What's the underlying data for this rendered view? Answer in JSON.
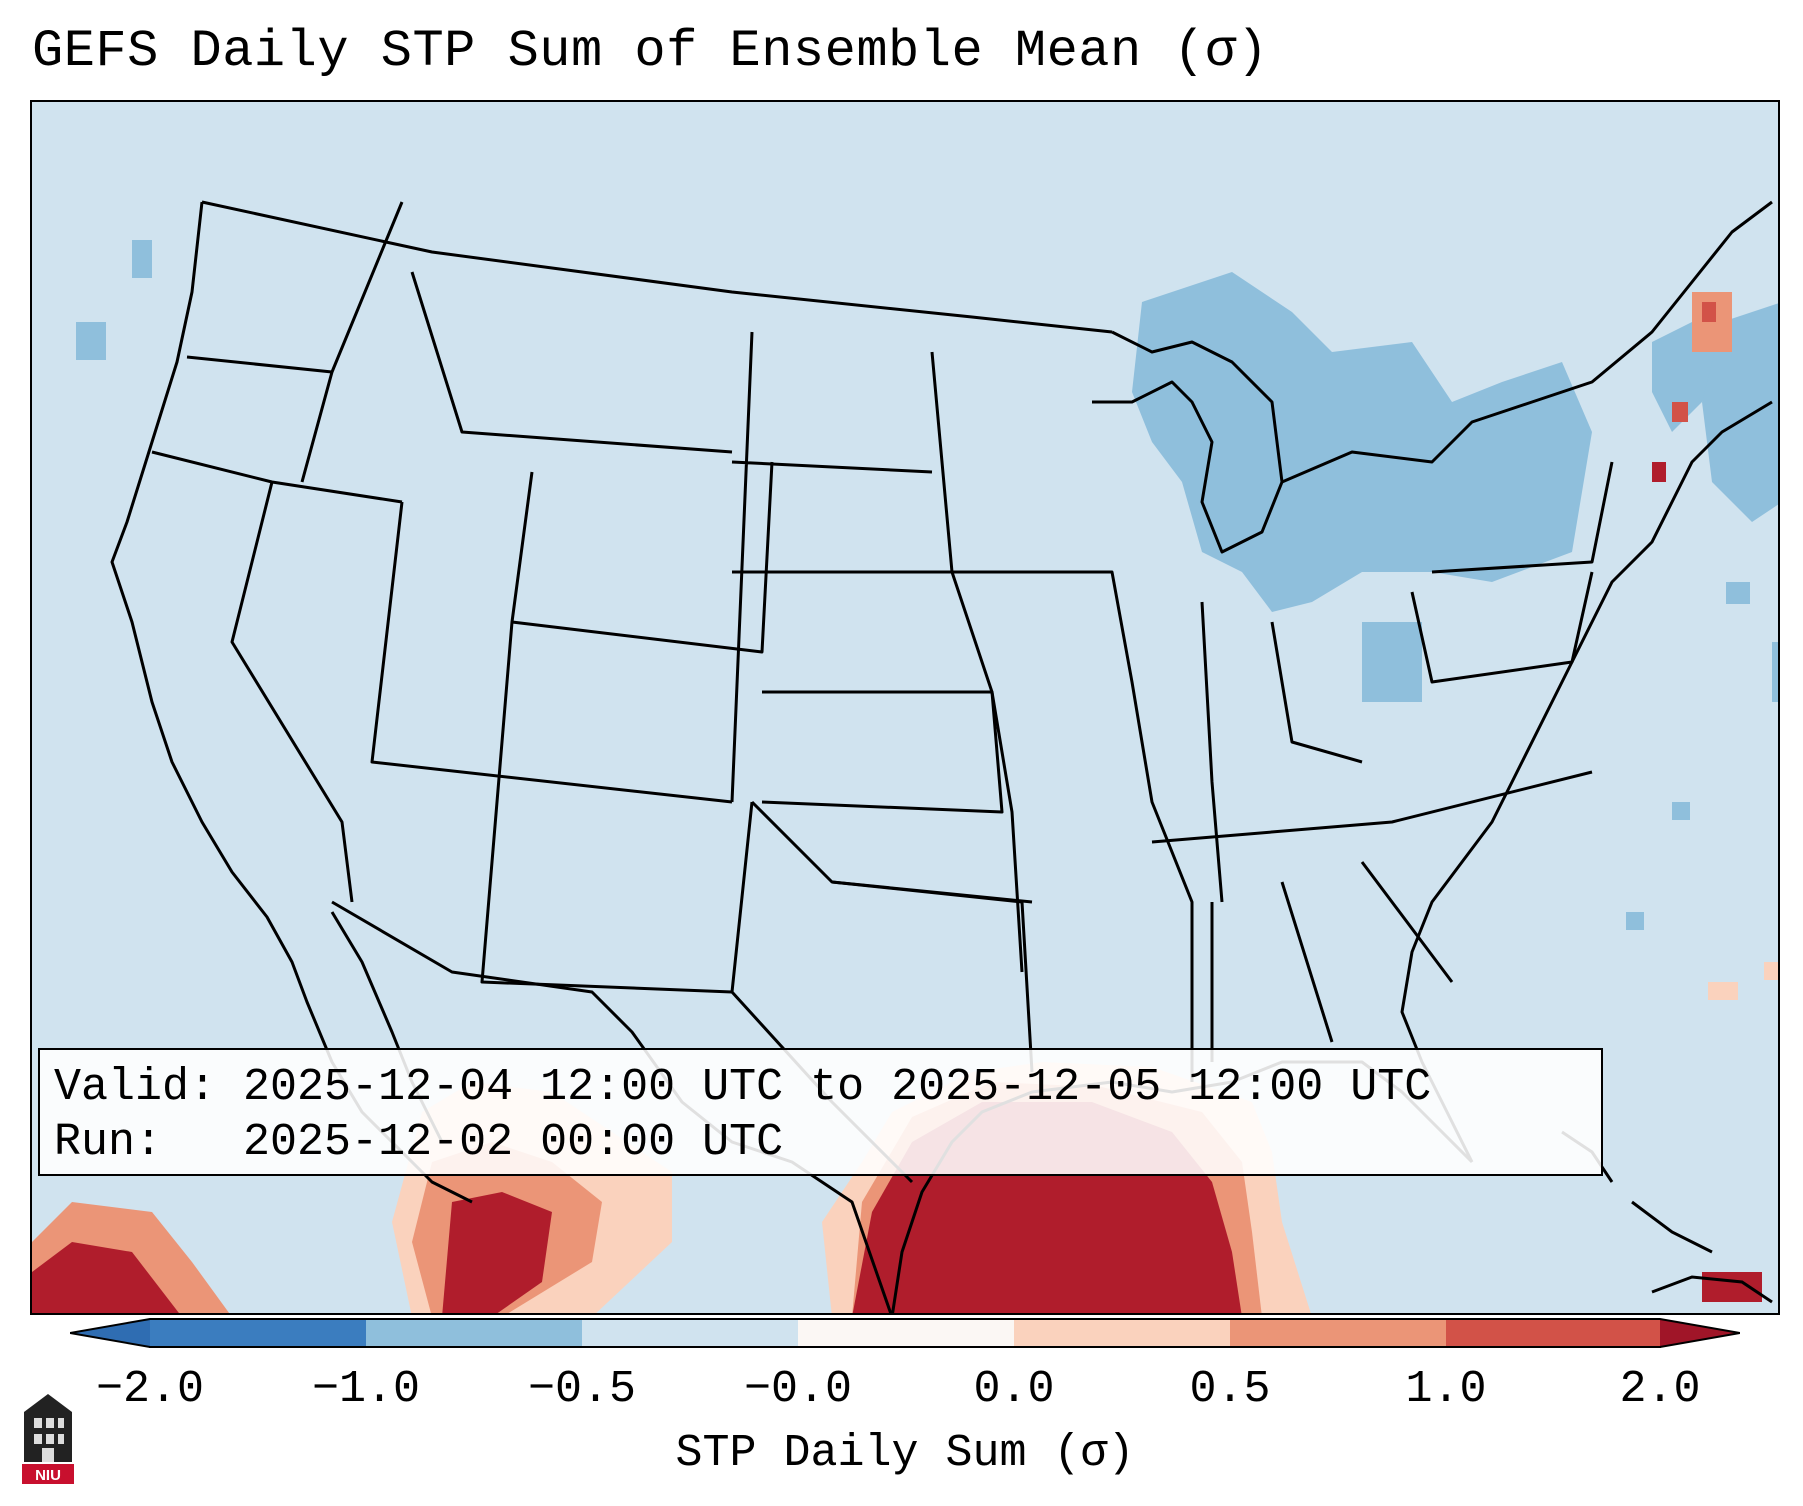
{
  "title": "GEFS Daily STP Sum of Ensemble Mean (σ)",
  "info": {
    "valid_label": "Valid:",
    "valid_value": "2025-12-04 12:00 UTC to 2025-12-05 12:00 UTC",
    "run_label": "Run:",
    "run_value": "2025-12-02 00:00 UTC"
  },
  "colorbar": {
    "label": "STP Daily Sum (σ)",
    "ticks": [
      "−2.0",
      "−1.0",
      "−0.5",
      "−0.0",
      "0.0",
      "0.5",
      "1.0",
      "2.0"
    ],
    "colors": [
      "#3b7dbf",
      "#8fbfdc",
      "#d0e3ef",
      "#fbf7f4",
      "#fad2bd",
      "#eb9577",
      "#d25248",
      "#b01d2c"
    ]
  },
  "logo": {
    "text": "NIU"
  },
  "map": {
    "projection": "Lambert conformal, CONUS",
    "background_color": "#d0e3ef"
  }
}
